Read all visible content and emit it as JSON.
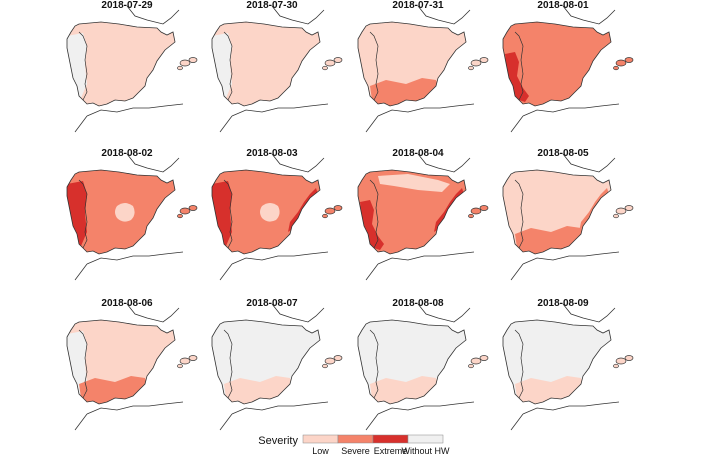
{
  "figure": {
    "panels": [
      {
        "date": "2018-07-29",
        "base": "low",
        "blobs": [
          {
            "level": "none",
            "shape": "west"
          }
        ]
      },
      {
        "date": "2018-07-30",
        "base": "low",
        "blobs": [
          {
            "level": "none",
            "shape": "west"
          }
        ]
      },
      {
        "date": "2018-07-31",
        "base": "low",
        "blobs": [
          {
            "level": "severe",
            "shape": "south"
          }
        ]
      },
      {
        "date": "2018-08-01",
        "base": "severe",
        "blobs": [
          {
            "level": "extreme",
            "shape": "sw"
          }
        ]
      },
      {
        "date": "2018-08-02",
        "base": "severe",
        "blobs": [
          {
            "level": "extreme",
            "shape": "west"
          },
          {
            "level": "low",
            "shape": "center"
          }
        ]
      },
      {
        "date": "2018-08-03",
        "base": "severe",
        "blobs": [
          {
            "level": "extreme",
            "shape": "west"
          },
          {
            "level": "low",
            "shape": "center"
          },
          {
            "level": "extreme",
            "shape": "east"
          }
        ]
      },
      {
        "date": "2018-08-04",
        "base": "severe",
        "blobs": [
          {
            "level": "low",
            "shape": "north"
          },
          {
            "level": "extreme",
            "shape": "east"
          },
          {
            "level": "extreme",
            "shape": "sw"
          }
        ]
      },
      {
        "date": "2018-08-05",
        "base": "low",
        "blobs": [
          {
            "level": "severe",
            "shape": "south"
          },
          {
            "level": "severe",
            "shape": "east"
          }
        ]
      },
      {
        "date": "2018-08-06",
        "base": "low",
        "blobs": [
          {
            "level": "none",
            "shape": "west"
          },
          {
            "level": "severe",
            "shape": "south"
          }
        ]
      },
      {
        "date": "2018-08-07",
        "base": "none",
        "blobs": [
          {
            "level": "low",
            "shape": "south"
          }
        ]
      },
      {
        "date": "2018-08-08",
        "base": "none",
        "blobs": [
          {
            "level": "low",
            "shape": "south"
          }
        ]
      },
      {
        "date": "2018-08-09",
        "base": "none",
        "blobs": [
          {
            "level": "low",
            "shape": "south"
          }
        ]
      }
    ]
  },
  "legend": {
    "title": "Severity",
    "items": [
      {
        "key": "low",
        "label": "Low",
        "color": "#fcd5c8"
      },
      {
        "key": "severe",
        "label": "Severe",
        "color": "#f4836a"
      },
      {
        "key": "extreme",
        "label": "Extreme",
        "color": "#d7302c"
      },
      {
        "key": "none",
        "label": "Without HW",
        "color": "#f0f0f0"
      }
    ]
  }
}
